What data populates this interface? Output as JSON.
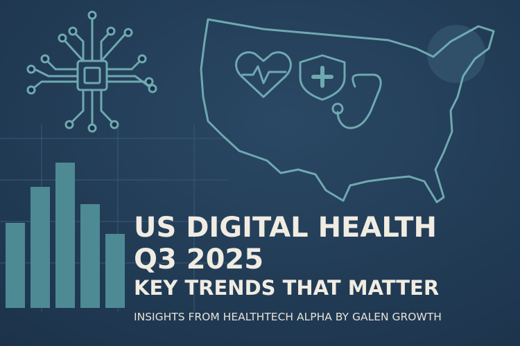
{
  "header": {
    "title_line_1": "US DIGITAL HEALTH",
    "title_line_2": "Q3 2025",
    "subtitle": "KEY TRENDS THAT MATTER",
    "byline": "INSIGHTS FROM HEALTHTECH ALPHA BY GALEN GROWTH"
  }
}
